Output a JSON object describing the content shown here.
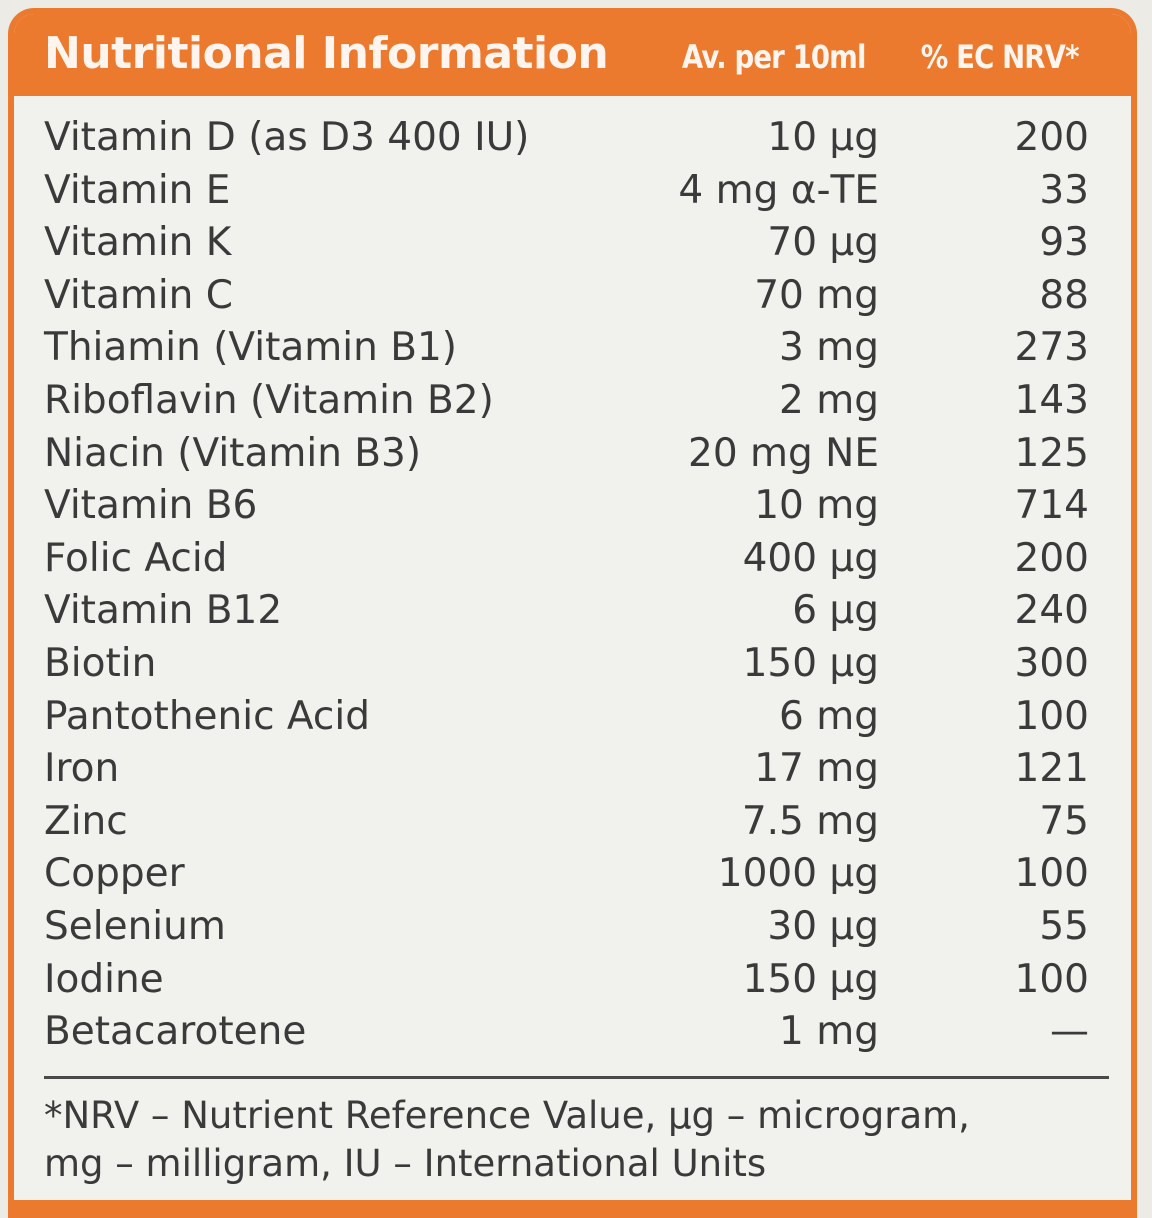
{
  "header": {
    "title": "Nutritional Information",
    "col_amount": "Av. per 10ml",
    "col_nrv": "% EC NRV*"
  },
  "rows": [
    {
      "name": "Vitamin D (as D3 400 IU)",
      "amount": "10 µg",
      "nrv": "200"
    },
    {
      "name": "Vitamin E",
      "amount": "4 mg α-TE",
      "nrv": "33"
    },
    {
      "name": "Vitamin K",
      "amount": "70 µg",
      "nrv": "93"
    },
    {
      "name": "Vitamin C",
      "amount": "70 mg",
      "nrv": "88"
    },
    {
      "name": "Thiamin (Vitamin B1)",
      "amount": "3 mg",
      "nrv": "273"
    },
    {
      "name": "Riboflavin (Vitamin B2)",
      "amount": "2 mg",
      "nrv": "143"
    },
    {
      "name": "Niacin (Vitamin B3)",
      "amount": "20 mg NE",
      "nrv": "125"
    },
    {
      "name": "Vitamin B6",
      "amount": "10 mg",
      "nrv": "714"
    },
    {
      "name": "Folic Acid",
      "amount": "400 µg",
      "nrv": "200"
    },
    {
      "name": "Vitamin B12",
      "amount": "6 µg",
      "nrv": "240"
    },
    {
      "name": "Biotin",
      "amount": "150 µg",
      "nrv": "300"
    },
    {
      "name": "Pantothenic Acid",
      "amount": "6 mg",
      "nrv": "100"
    },
    {
      "name": "Iron",
      "amount": "17 mg",
      "nrv": "121"
    },
    {
      "name": "Zinc",
      "amount": "7.5 mg",
      "nrv": "75"
    },
    {
      "name": "Copper",
      "amount": "1000 µg",
      "nrv": "100"
    },
    {
      "name": "Selenium",
      "amount": "30 µg",
      "nrv": "55"
    },
    {
      "name": "Iodine",
      "amount": "150 µg",
      "nrv": "100"
    },
    {
      "name": "Betacarotene",
      "amount": "1 mg",
      "nrv": "—"
    }
  ],
  "footnote": {
    "line1": "*NRV – Nutrient Reference Value, µg – microgram,",
    "line2": "mg – milligram, IU – International Units"
  },
  "colors": {
    "accent": "#ec7a2e",
    "background": "#f1f1ee",
    "text": "#3a3a3a"
  }
}
